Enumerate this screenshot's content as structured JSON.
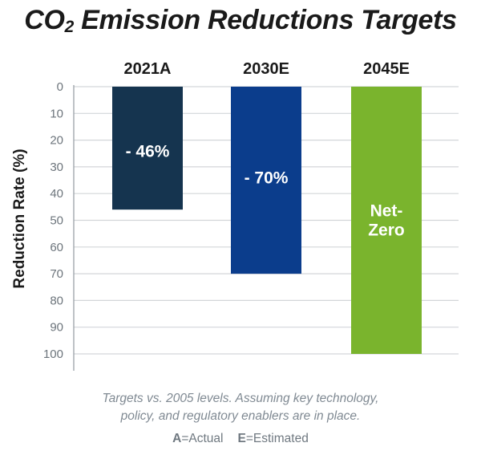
{
  "title": {
    "main": "CO",
    "subscript": "2",
    "rest": " Emission Reductions Targets"
  },
  "chart_data": {
    "type": "bar",
    "orientation": "vertical-downward",
    "title": "CO2 Emission Reductions Targets",
    "categories": [
      "2021A",
      "2030E",
      "2045E"
    ],
    "values": [
      46,
      70,
      100
    ],
    "bar_labels": [
      "- 46%",
      "- 70%",
      "Net-\nZero"
    ],
    "bar_colors": [
      "#15344f",
      "#0b3d8c",
      "#7ab42d"
    ],
    "ylabel": "Reduction Rate (%)",
    "xlabel": "",
    "ylim": [
      0,
      100
    ],
    "y_ticks": [
      0,
      10,
      20,
      30,
      40,
      50,
      60,
      70,
      80,
      90,
      100
    ],
    "y_inverted": true,
    "x_axis_position": "top",
    "grid": true
  },
  "footnote": {
    "line1": "Targets vs. 2005 levels. Assuming key technology,",
    "line2": "policy, and regulatory enablers are in place."
  },
  "legend": {
    "actual_key": "A",
    "actual_text": "=Actual",
    "estimated_key": "E",
    "estimated_text": "=Estimated"
  }
}
